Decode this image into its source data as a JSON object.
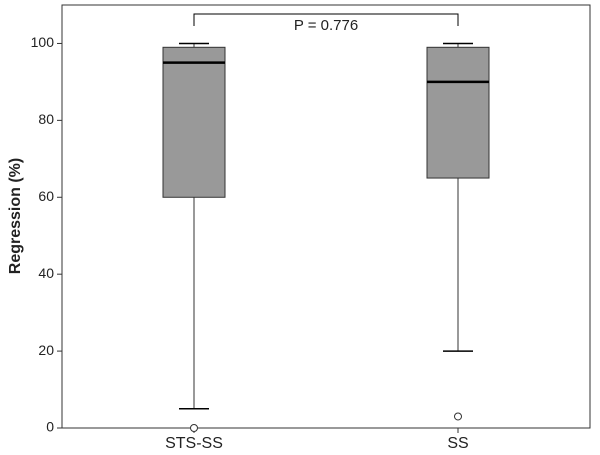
{
  "chart_data": {
    "type": "box",
    "y_label": "Regression (%)",
    "categories": [
      "STS-SS",
      "SS"
    ],
    "boxes": [
      {
        "min": 5,
        "q1": 60,
        "median": 95,
        "q3": 99,
        "max": 100,
        "outliers": [
          0
        ]
      },
      {
        "min": 20,
        "q1": 65,
        "median": 90,
        "q3": 99,
        "max": 100,
        "outliers": [
          3
        ]
      }
    ],
    "color": "#999999",
    "annotation": "P = 0.776",
    "ylim": [
      0,
      110
    ],
    "yticks": [
      0,
      20,
      40,
      60,
      80,
      100
    ],
    "grid": false
  }
}
